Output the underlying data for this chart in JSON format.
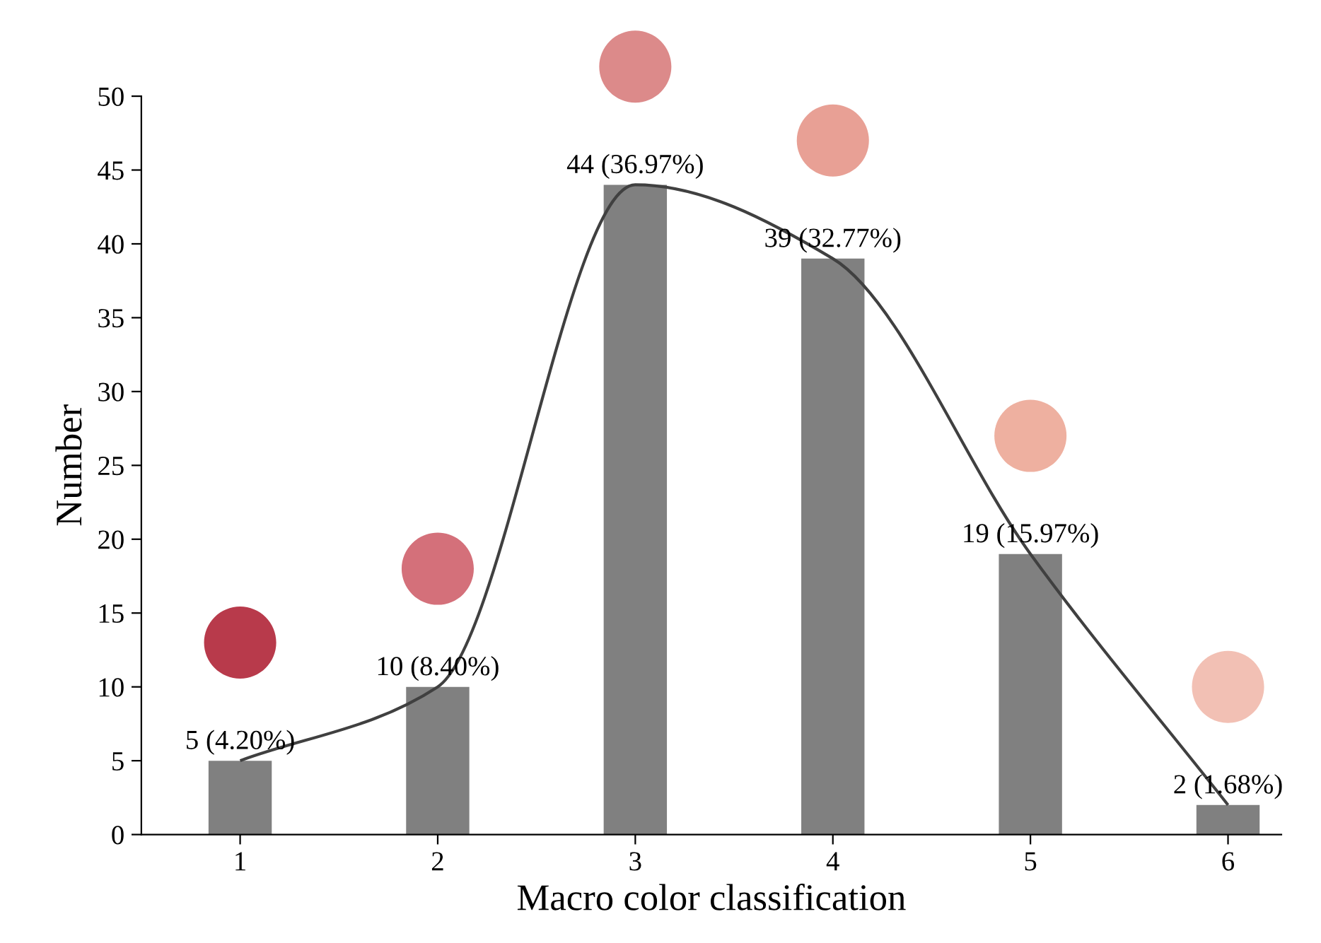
{
  "chart_data": {
    "type": "bar",
    "xlabel": "Macro color classification",
    "ylabel": "Number",
    "categories": [
      "1",
      "2",
      "3",
      "4",
      "5",
      "6"
    ],
    "series": [
      {
        "color": "#808080",
        "values": [
          5,
          10,
          44,
          39,
          19,
          2
        ],
        "value_labels": [
          "5 (4.20%)",
          "10 (8.40%)",
          "44 (36.97%)",
          "39 (32.77%)",
          "19 (15.97%)",
          "2 (1.68%)"
        ]
      },
      {
        "type": "line",
        "color": "#404040",
        "values": [
          5,
          10,
          44,
          39,
          19,
          2
        ]
      }
    ],
    "ylim": [
      0,
      50
    ],
    "yticks": [
      0,
      5,
      10,
      15,
      20,
      25,
      30,
      35,
      40,
      45,
      50
    ],
    "grid": false,
    "legend": false,
    "marker": "none",
    "line_style": "solid"
  }
}
